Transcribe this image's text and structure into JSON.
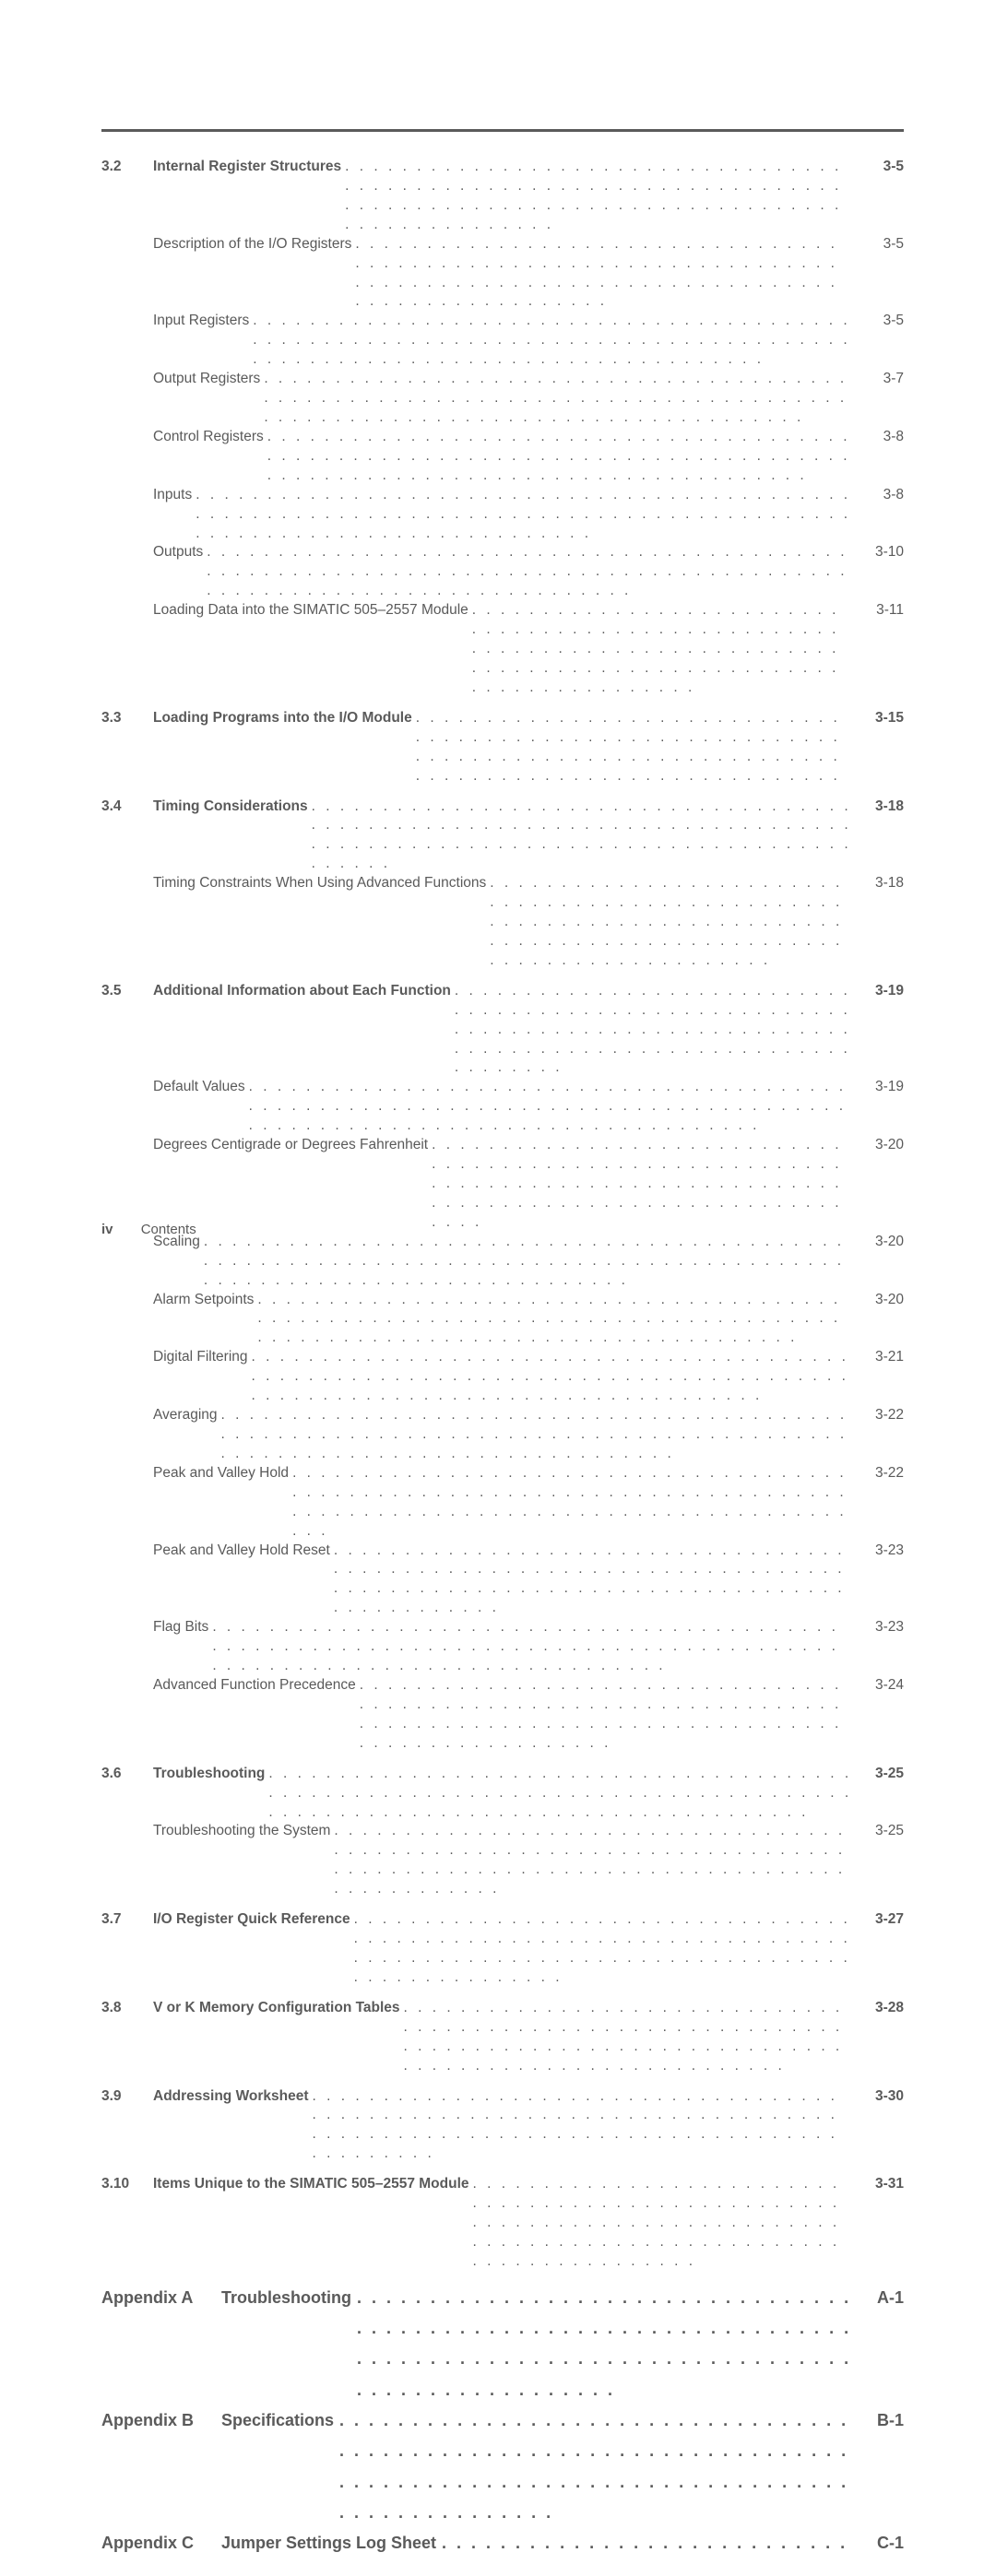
{
  "dots": ". . . . . . . . . . . . . . . . . . . . . . . . . . . . . . . . . . . . . . . . . . . . . . . . . . . . . . . . . . . . . . . . . . . . . . . . . . . . . . . . . . . . . . . . . . . . . . . . . . . . . . . . . . . . . . . . . . . . . . . .",
  "sections": [
    {
      "num": "3.2",
      "title": "Internal Register Structures",
      "page": "3-5",
      "items": [
        {
          "title": "Description of the I/O Registers",
          "page": "3-5"
        },
        {
          "title": "Input Registers",
          "page": "3-5"
        },
        {
          "title": "Output Registers",
          "page": "3-7"
        },
        {
          "title": "Control Registers",
          "page": "3-8"
        },
        {
          "title": "Inputs",
          "page": "3-8"
        },
        {
          "title": "Outputs",
          "page": "3-10"
        },
        {
          "title": "Loading Data into the SIMATIC 505–2557 Module",
          "page": "3-11"
        }
      ]
    },
    {
      "num": "3.3",
      "title": "Loading Programs into the I/O Module",
      "page": "3-15",
      "items": []
    },
    {
      "num": "3.4",
      "title": "Timing Considerations",
      "page": "3-18",
      "items": [
        {
          "title": "Timing Constraints When Using Advanced Functions",
          "page": "3-18"
        }
      ]
    },
    {
      "num": "3.5",
      "title": "Additional Information about Each Function",
      "page": "3-19",
      "items": [
        {
          "title": "Default Values",
          "page": "3-19"
        },
        {
          "title": "Degrees Centigrade or Degrees Fahrenheit",
          "page": "3-20"
        },
        {
          "title": "Scaling",
          "page": "3-20"
        },
        {
          "title": "Alarm Setpoints",
          "page": "3-20"
        },
        {
          "title": "Digital Filtering",
          "page": "3-21"
        },
        {
          "title": "Averaging",
          "page": "3-22"
        },
        {
          "title": "Peak and Valley Hold",
          "page": "3-22"
        },
        {
          "title": "Peak and Valley Hold Reset",
          "page": "3-23"
        },
        {
          "title": "Flag Bits",
          "page": "3-23"
        },
        {
          "title": "Advanced Function Precedence",
          "page": "3-24"
        }
      ]
    },
    {
      "num": "3.6",
      "title": "Troubleshooting",
      "page": "3-25",
      "items": [
        {
          "title": "Troubleshooting the System",
          "page": "3-25"
        }
      ]
    },
    {
      "num": "3.7",
      "title": "I/O Register Quick Reference",
      "page": "3-27",
      "items": []
    },
    {
      "num": "3.8",
      "title": "V or K Memory Configuration Tables",
      "page": "3-28",
      "items": []
    },
    {
      "num": "3.9",
      "title": "Addressing Worksheet",
      "page": "3-30",
      "items": []
    },
    {
      "num": "3.10",
      "title": "Items Unique to the SIMATIC 505–2557 Module",
      "page": "3-31",
      "items": []
    }
  ],
  "appendices": [
    {
      "label": "Appendix A",
      "title": "Troubleshooting",
      "page": "A-1"
    },
    {
      "label": "Appendix B",
      "title": "Specifications",
      "page": "B-1"
    },
    {
      "label": "Appendix C",
      "title": "Jumper Settings Log Sheet",
      "page": "C-1"
    }
  ],
  "footer": {
    "pagenum": "iv",
    "label": "Contents"
  }
}
